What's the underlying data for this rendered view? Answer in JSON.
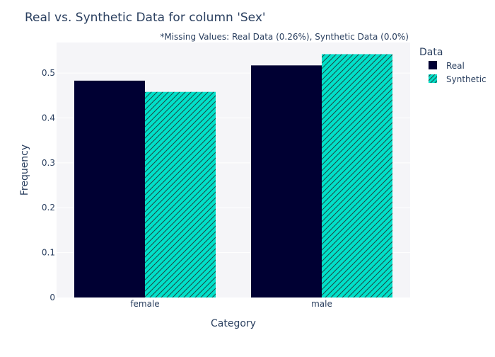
{
  "chart_data": {
    "type": "bar",
    "title": "Real vs. Synthetic Data for column 'Sex'",
    "annotation": "*Missing Values: Real Data (0.26%), Synthetic Data (0.0%)",
    "xlabel": "Category",
    "ylabel": "Frequency",
    "categories": [
      "female",
      "male"
    ],
    "ylim": [
      0,
      0.568
    ],
    "yticks": [
      0,
      0.1,
      0.2,
      0.3,
      0.4,
      0.5
    ],
    "grid": true,
    "legend_title": "Data",
    "legend_position": "top-right",
    "series": [
      {
        "name": "Real",
        "values": [
          0.483,
          0.517
        ],
        "color": "#000033",
        "pattern": "solid"
      },
      {
        "name": "Synthetic",
        "values": [
          0.458,
          0.542
        ],
        "color": "#01E0C9",
        "pattern": "diagonal-hatch"
      }
    ]
  },
  "colors": {
    "plot_background": "#F5F5F8",
    "grid": "#FFFFFF",
    "text": "#2A3F5F"
  }
}
